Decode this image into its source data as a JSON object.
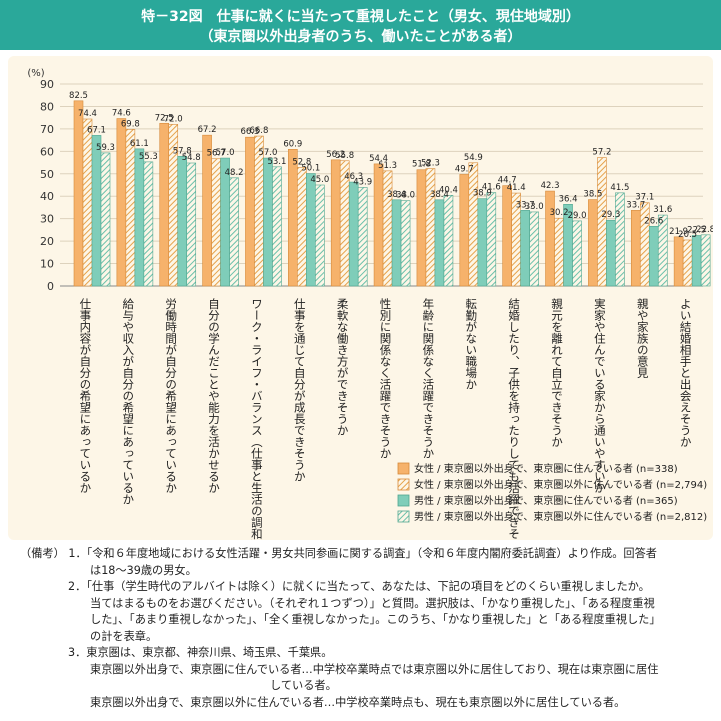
{
  "header": {
    "title": "特－32図　仕事に就くに当たって重視したこと（男女、現住地域別）",
    "subtitle": "（東京圏以外出身者のうち、働いたことがある者）"
  },
  "colors": {
    "header_bg": "#2aa89a",
    "panel_bg": "#fdf6e7",
    "female_tokyo": "#f6b26b",
    "male_tokyo": "#7fcdb9",
    "hatch_line": "#e0a040",
    "hatch_line_male": "#5fb39e"
  },
  "chart_data": {
    "type": "bar",
    "ylabel": "(%)",
    "ylim": [
      0,
      90
    ],
    "yticks": [
      0,
      10,
      20,
      30,
      40,
      50,
      60,
      70,
      80,
      90
    ],
    "categories": [
      "仕事内容が自分の希望にあっているか",
      "給与や収入が自分の希望にあっているか",
      "労働時間が自分の希望にあっているか",
      "自分の学んだことや能力を活かせるか",
      "ワーク・ライフ・バランス（仕事と生活の調和）",
      "仕事を通じて自分が成長できそうか",
      "柔軟な働き方ができそうか",
      "性別に関係なく活躍できそうか",
      "年齢に関係なく活躍できそうか",
      "転勤がない職場か",
      "結婚したり、子供を持ったりしても活躍できそうか",
      "親元を離れて自立できそうか",
      "実家や住んでいる家から通いやすいか",
      "親や家族の意見",
      "よい結婚相手と出会えそうか"
    ],
    "series": [
      {
        "name": "女性 / 東京圏以外出身で、東京圏に住んでいる者 (n=338)",
        "values": [
          82.5,
          74.6,
          72.5,
          67.2,
          66.3,
          60.9,
          56.2,
          54.4,
          51.8,
          49.7,
          44.7,
          42.3,
          38.5,
          33.7,
          21.9
        ]
      },
      {
        "name": "女性 / 東京圏以外出身で、東京圏以外に住んでいる者 (n=2,794)",
        "values": [
          74.4,
          69.8,
          72.0,
          56.7,
          66.8,
          52.8,
          55.8,
          51.3,
          52.3,
          54.9,
          41.4,
          30.2,
          57.2,
          37.1,
          20.5
        ]
      },
      {
        "name": "男性 / 東京圏以外出身で、東京圏に住んでいる者 (n=365)",
        "values": [
          67.1,
          61.1,
          57.8,
          57.0,
          57.0,
          50.1,
          46.3,
          38.4,
          38.4,
          38.9,
          33.7,
          36.4,
          29.3,
          26.6,
          22.5
        ]
      },
      {
        "name": "男性 / 東京圏以外出身で、東京圏以外に住んでいる者 (n=2,812)",
        "values": [
          59.3,
          55.3,
          54.8,
          48.2,
          53.1,
          45.0,
          43.9,
          38.0,
          40.4,
          41.6,
          33.0,
          29.0,
          41.5,
          31.6,
          22.8
        ]
      }
    ]
  },
  "notes": {
    "label": "（備考）",
    "n1a": "1．「令和６年度地域における女性活躍・男女共同参画に関する調査」（令和６年度内閣府委託調査）より作成。回答者",
    "n1b": "は18～39歳の男女。",
    "n2a": "2．「仕事（学生時代のアルバイトは除く）に就くに当たって、あなたは、下記の項目をどのくらい重視しましたか。",
    "n2b": "当てはまるものをお選びください。（それぞれ１つずつ）」と質問。選択肢は、「かなり重視した」、「ある程度重視",
    "n2c": "した」、「あまり重視しなかった」、「全く重視しなかった」。このうち、「かなり重視した」と「ある程度重視した」",
    "n2d": "の計を表章。",
    "n3a": "3．東京圏は、東京都、神奈川県、埼玉県、千葉県。",
    "n3b": "東京圏以外出身で、東京圏に住んでいる者…中学校卒業時点では東京圏以外に居住しており、現在は東京圏に居住",
    "n3c": "している者。",
    "n3d": "東京圏以外出身で、東京圏以外に住んでいる者…中学校卒業時点も、現在も東京圏以外に居住している者。"
  }
}
